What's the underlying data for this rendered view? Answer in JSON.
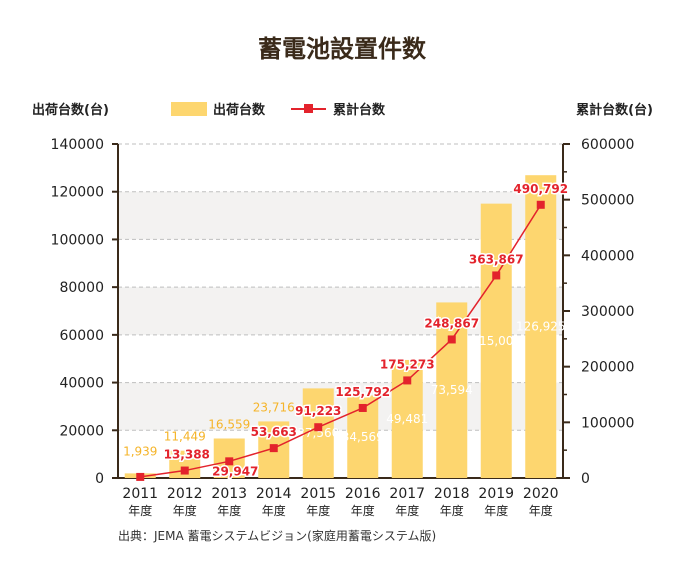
{
  "chart_data": {
    "type": "bar",
    "title": "蓄電池設置件数",
    "ylabel_left": "出荷台数(台)",
    "ylabel_right": "累計台数(台)",
    "categories": [
      "2011\n年度",
      "2012\n年度",
      "2013\n年度",
      "2014\n年度",
      "2015\n年度",
      "2016\n年度",
      "2017\n年度",
      "2018\n年度",
      "2019\n年度",
      "2020\n年度"
    ],
    "series": [
      {
        "name": "出荷台数",
        "type": "bar",
        "axis": "left",
        "color": "#fdd66f",
        "values": [
          1939,
          11449,
          16559,
          23716,
          37560,
          34569,
          49481,
          73594,
          115000,
          126925
        ],
        "labels": [
          "1,939",
          "11,449",
          "16,559",
          "23,716",
          "37,560",
          "34,569",
          "49,481",
          "73,594",
          "115,000",
          "126,925"
        ]
      },
      {
        "name": "累計台数",
        "type": "line",
        "axis": "right",
        "color": "#e3232c",
        "values": [
          1939,
          13388,
          29947,
          53663,
          91223,
          125792,
          175273,
          248867,
          363867,
          490792
        ],
        "labels": [
          "",
          "13,388",
          "29,947",
          "53,663",
          "91,223",
          "125,792",
          "175,273",
          "248,867",
          "363,867",
          "490,792"
        ]
      }
    ],
    "ylim_left": [
      0,
      140000
    ],
    "ylim_right": [
      0,
      600000
    ],
    "yticks_left": [
      "0",
      "20000",
      "40000",
      "60000",
      "80000",
      "100000",
      "120000",
      "140000"
    ],
    "yticks_right": [
      "0",
      "50000",
      "100000",
      "150000",
      "200000",
      "250000",
      "300000",
      "350000",
      "400000",
      "450000",
      "500000",
      "550000",
      "600000"
    ],
    "yticks_right_shown": [
      "0",
      "100000",
      "200000",
      "300000",
      "400000",
      "500000",
      "600000"
    ],
    "grid": true,
    "legend_position": "top"
  },
  "source": "出典：JEMA 蓄電システムビジョン(家庭用蓄電システム版)"
}
